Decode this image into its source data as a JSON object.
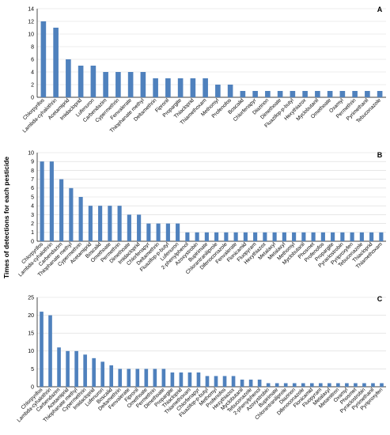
{
  "ylabel": "Times of detections for each pesticide",
  "colors": {
    "bar": "#4f81bd",
    "grid": "#d9d9d9"
  },
  "chart_data": [
    {
      "type": "bar",
      "panel": "A",
      "ylim": [
        0,
        14
      ],
      "yticks": [
        0,
        2,
        4,
        6,
        8,
        10,
        12,
        14
      ],
      "grid": true,
      "categories": [
        "Chlorpyrifos",
        "Lambda-cyhalothrin",
        "Acetamiprid",
        "Imidacloprid",
        "Lufenuron",
        "Carbendazim",
        "Cypermethrin",
        "Fenvalerate",
        "Thiophanate methyl",
        "Deltamethrin",
        "Fipronil",
        "Propargite",
        "Thiacloprid",
        "Thiamethoxam",
        "Methomyl",
        "Profenofos",
        "Boscalid",
        "Chlorfenapyr",
        "Diazinon",
        "Dimethoate",
        "Fluazifop-p-butyl",
        "Hexythiazox",
        "Myclobutanil",
        "Omethoate",
        "Oxamyl",
        "Permethrin",
        "Pyrimethanil",
        "Tebuconazole"
      ],
      "values": [
        12,
        11,
        6,
        5,
        5,
        4,
        4,
        4,
        4,
        3,
        3,
        3,
        3,
        3,
        2,
        2,
        1,
        1,
        1,
        1,
        1,
        1,
        1,
        1,
        1,
        1,
        1,
        1
      ]
    },
    {
      "type": "bar",
      "panel": "B",
      "ylim": [
        0,
        10
      ],
      "yticks": [
        0,
        1,
        2,
        3,
        4,
        5,
        6,
        7,
        8,
        9,
        10
      ],
      "grid": true,
      "categories": [
        "Chlorpyrifos",
        "Lambda-cyhalothrin",
        "Carbendazim",
        "Thiophanate methyl",
        "Cypermethrin",
        "Acetamiprid",
        "Boscalid",
        "Omethoate",
        "Permethrin",
        "Dimethoate",
        "Imidacloprid",
        "Chlorfenapyr",
        "Deltamethrin",
        "Fluazifop-p-butyl",
        "Lufenuron",
        "2-phenylphenol",
        "Azoxystrobin",
        "Bupirimate",
        "Chlorantraniliprole",
        "Difenoconazole",
        "Fenvalerate",
        "Flonicamid",
        "Fluopyram",
        "Hexythiazox",
        "Metalaxyl",
        "Metalaxyl",
        "Methomyl",
        "Myclobutanil",
        "Phosmet",
        "Profenofos",
        "Propargite",
        "Pyraclostrobin",
        "Pyriproxyfen",
        "Tebuconazole",
        "Thiacloprid",
        "Thiamethoxam"
      ],
      "values": [
        9,
        9,
        7,
        6,
        5,
        4,
        4,
        4,
        4,
        3,
        3,
        2,
        2,
        2,
        2,
        1,
        1,
        1,
        1,
        1,
        1,
        1,
        1,
        1,
        1,
        1,
        1,
        1,
        1,
        1,
        1,
        1,
        1,
        1,
        1,
        1
      ]
    },
    {
      "type": "bar",
      "panel": "C",
      "ylim": [
        0,
        25
      ],
      "yticks": [
        0,
        5,
        10,
        15,
        20,
        25
      ],
      "grid": true,
      "categories": [
        "Chlorpyrifos",
        "Lambda-cyhalothrin",
        "Carbendazim",
        "Acetamiprid",
        "Thiophanate methyl",
        "Cypermethrin",
        "Imidacloprid",
        "Lufenuron",
        "Boscalid",
        "Deltamethrin",
        "Fenvalerate",
        "Fipronil",
        "Omethoate",
        "Permethrin",
        "Dimethoate",
        "Propargite",
        "Thiacloprid",
        "Thiamethoxam",
        "Chlorfenapyr",
        "Fluazifop-p-butyl",
        "Methomyl",
        "Profenofos",
        "Hexythiazox",
        "Myclobutanil",
        "Tebuconazole",
        "2-phenylphenol",
        "Azoxystrobin",
        "Bupirimate",
        "Chlorantraniliprole",
        "Diazinon",
        "Difenoconazole",
        "Flonicamid",
        "Fluopyram",
        "Metalaxyl",
        "Metamitron",
        "Oxamyl",
        "Phosmet",
        "Pyraclostrobin",
        "Pyrimethanil",
        "Pyriproxyfen"
      ],
      "values": [
        21,
        20,
        11,
        10,
        10,
        9,
        8,
        7,
        6,
        5,
        5,
        5,
        5,
        5,
        5,
        4,
        4,
        4,
        4,
        3,
        3,
        3,
        3,
        2,
        2,
        2,
        1,
        1,
        1,
        1,
        1,
        1,
        1,
        1,
        1,
        1,
        1,
        1,
        1,
        1
      ]
    }
  ]
}
